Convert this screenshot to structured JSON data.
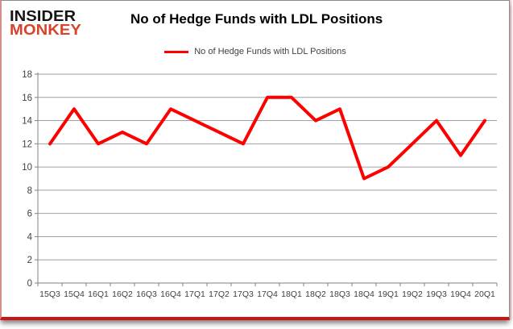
{
  "card": {
    "logo": {
      "line1": "INSIDER",
      "line2": "MONKEY"
    },
    "title": "No of Hedge Funds with LDL Positions",
    "legend": {
      "label": "No of Hedge Funds with LDL Positions"
    }
  },
  "chart_data": {
    "type": "line",
    "title": "No of Hedge Funds with LDL Positions",
    "series_name": "No of Hedge Funds with LDL Positions",
    "categories": [
      "15Q3",
      "15Q4",
      "16Q1",
      "16Q2",
      "16Q3",
      "16Q4",
      "17Q1",
      "17Q2",
      "17Q3",
      "17Q4",
      "18Q1",
      "18Q2",
      "18Q3",
      "18Q4",
      "19Q1",
      "19Q2",
      "19Q3",
      "19Q4",
      "20Q1"
    ],
    "values": [
      12,
      15,
      12,
      13,
      12,
      15,
      14,
      13,
      12,
      16,
      16,
      14,
      15,
      9,
      10,
      12,
      14,
      11,
      14
    ],
    "xlabel": "",
    "ylabel": "",
    "ylim": [
      0,
      18
    ],
    "ytick_step": 2,
    "grid": true,
    "legend_position": "top"
  },
  "colors": {
    "line": "#ff0000",
    "logo_accent": "#d8432c",
    "grid": "#a0a0a0",
    "axis": "#808080",
    "tick_text": "#404040",
    "border_red": "#cc1414"
  }
}
